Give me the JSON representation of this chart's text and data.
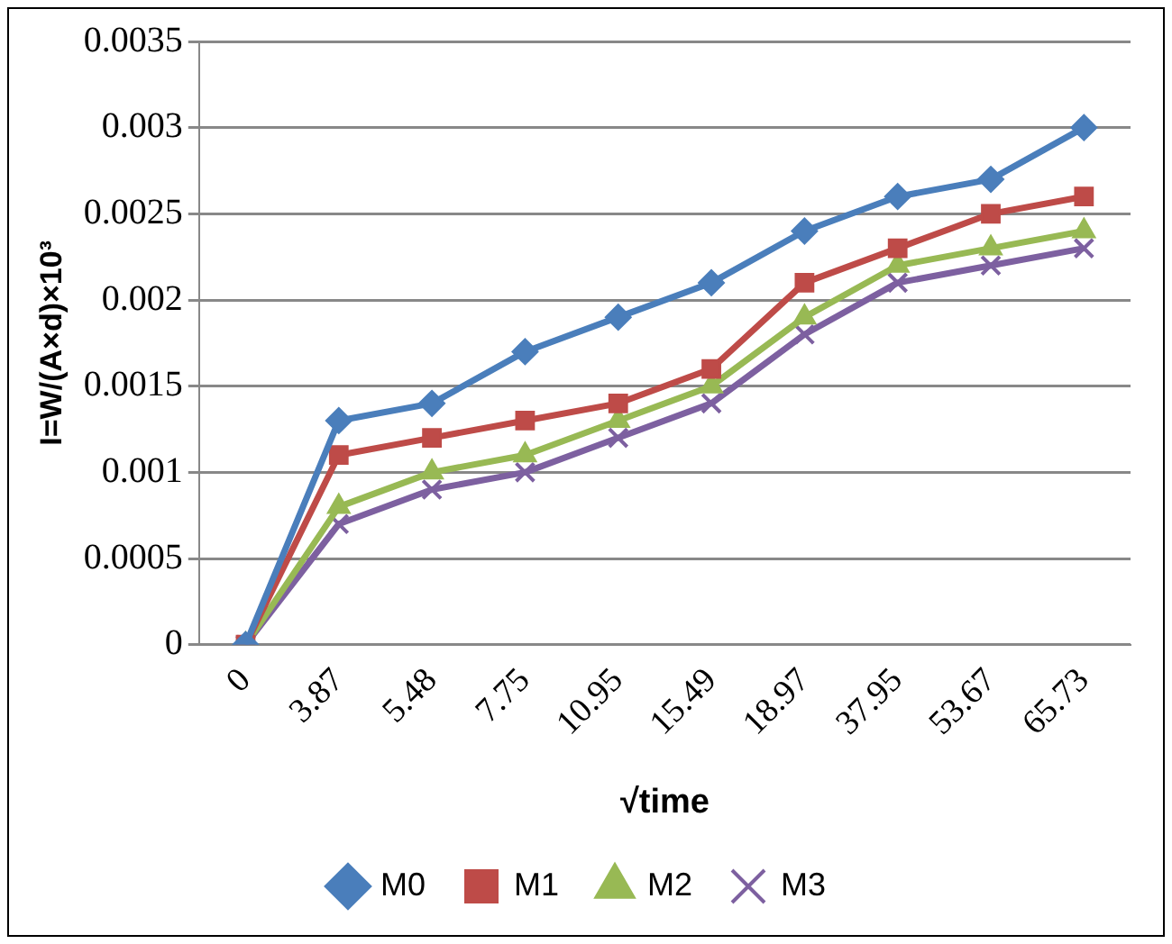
{
  "chart_data": {
    "type": "line",
    "xlabel": "√time",
    "ylabel": "I=W/(A×d)×10³",
    "categories": [
      "0",
      "3.87",
      "5.48",
      "7.75",
      "10.95",
      "15.49",
      "18.97",
      "37.95",
      "53.67",
      "65.73"
    ],
    "series": [
      {
        "name": "M0",
        "color": "#4a7ebb",
        "marker": "diamond",
        "values": [
          0,
          0.0013,
          0.0014,
          0.0017,
          0.0019,
          0.0021,
          0.0024,
          0.0026,
          0.0027,
          0.003
        ]
      },
      {
        "name": "M1",
        "color": "#be4b48",
        "marker": "square",
        "values": [
          0,
          0.0011,
          0.0012,
          0.0013,
          0.0014,
          0.0016,
          0.0021,
          0.0023,
          0.0025,
          0.0026
        ]
      },
      {
        "name": "M2",
        "color": "#98b954",
        "marker": "triangle",
        "values": [
          0,
          0.0008,
          0.001,
          0.0011,
          0.0013,
          0.0015,
          0.0019,
          0.0022,
          0.0023,
          0.0024
        ]
      },
      {
        "name": "M3",
        "color": "#7d60a0",
        "marker": "cross",
        "values": [
          0,
          0.0007,
          0.0009,
          0.001,
          0.0012,
          0.0014,
          0.0018,
          0.0021,
          0.0022,
          0.0023
        ]
      }
    ],
    "ylim": [
      0,
      0.0035
    ],
    "yticks": [
      0,
      0.0005,
      0.001,
      0.0015,
      0.002,
      0.0025,
      0.003,
      0.0035
    ],
    "grid": "y",
    "legend": "bottom"
  }
}
